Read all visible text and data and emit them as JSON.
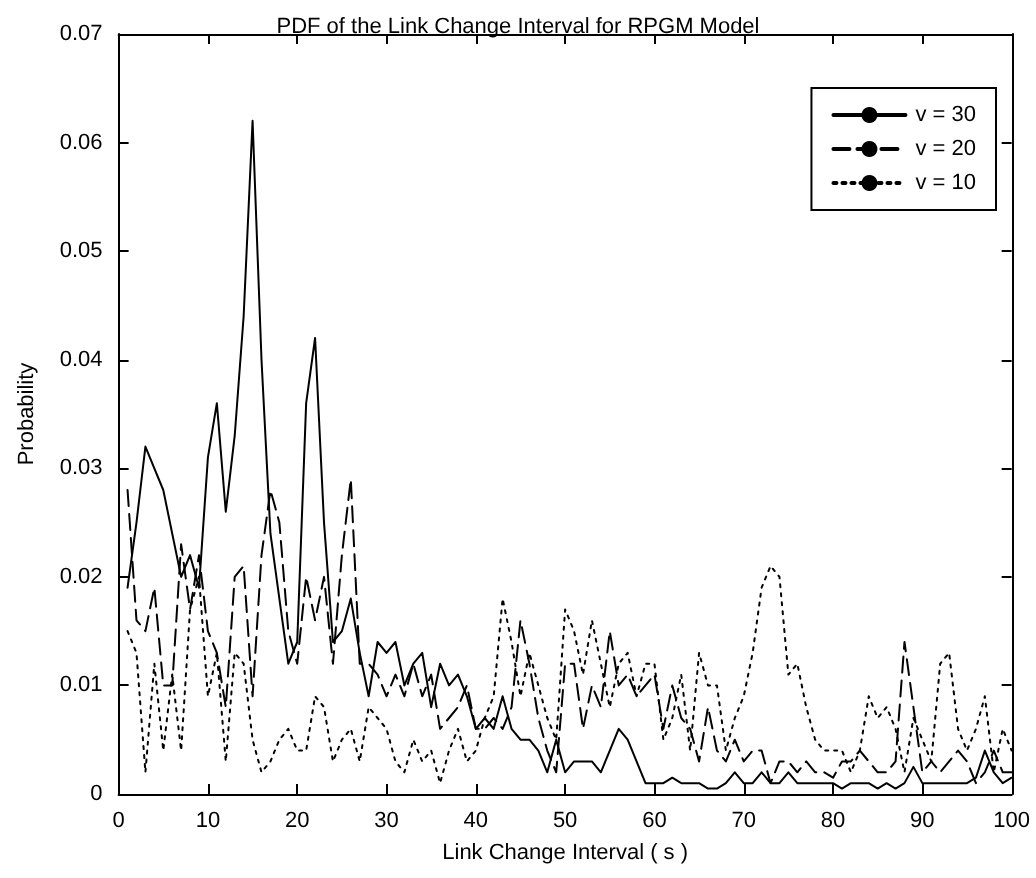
{
  "chart_data": {
    "type": "line",
    "title": "PDF of the Link Change Interval for RPGM Model",
    "xlabel": "Link Change Interval ( s )",
    "ylabel": "Probability",
    "x": [
      1,
      2,
      3,
      4,
      5,
      6,
      7,
      8,
      9,
      10,
      11,
      12,
      13,
      14,
      15,
      16,
      17,
      18,
      19,
      20,
      21,
      22,
      23,
      24,
      25,
      26,
      27,
      28,
      29,
      30,
      31,
      32,
      33,
      34,
      35,
      36,
      37,
      38,
      39,
      40,
      41,
      42,
      43,
      44,
      45,
      46,
      47,
      48,
      49,
      50,
      51,
      52,
      53,
      54,
      55,
      56,
      57,
      58,
      59,
      60,
      61,
      62,
      63,
      64,
      65,
      66,
      67,
      68,
      69,
      70,
      71,
      72,
      73,
      74,
      75,
      76,
      77,
      78,
      79,
      80,
      81,
      82,
      83,
      84,
      85,
      86,
      87,
      88,
      89,
      90,
      91,
      92,
      93,
      94,
      95,
      96,
      97,
      98,
      99,
      100
    ],
    "series": [
      {
        "name": "v = 30",
        "color": "#000000",
        "line_style": "solid",
        "values": [
          0.019,
          0.025,
          0.032,
          0.03,
          0.028,
          0.024,
          0.02,
          0.022,
          0.019,
          0.031,
          0.036,
          0.026,
          0.033,
          0.044,
          0.062,
          0.04,
          0.024,
          0.018,
          0.012,
          0.014,
          0.036,
          0.042,
          0.025,
          0.014,
          0.015,
          0.018,
          0.013,
          0.009,
          0.014,
          0.013,
          0.014,
          0.01,
          0.012,
          0.013,
          0.008,
          0.012,
          0.01,
          0.011,
          0.009,
          0.006,
          0.007,
          0.006,
          0.009,
          0.006,
          0.005,
          0.005,
          0.004,
          0.002,
          0.005,
          0.002,
          0.003,
          0.003,
          0.003,
          0.002,
          0.004,
          0.006,
          0.005,
          0.003,
          0.001,
          0.001,
          0.001,
          0.0015,
          0.001,
          0.001,
          0.001,
          0.0005,
          0.0005,
          0.001,
          0.002,
          0.001,
          0.001,
          0.002,
          0.001,
          0.001,
          0.002,
          0.001,
          0.001,
          0.001,
          0.001,
          0.001,
          0.0005,
          0.001,
          0.001,
          0.001,
          0.0005,
          0.001,
          0.0005,
          0.001,
          0.0025,
          0.001,
          0.001,
          0.001,
          0.001,
          0.001,
          0.001,
          0.0015,
          0.004,
          0.002,
          0.001,
          0.0015
        ]
      },
      {
        "name": "v = 20",
        "color": "#000000",
        "line_style": "dashed",
        "values": [
          0.028,
          0.016,
          0.015,
          0.019,
          0.01,
          0.01,
          0.023,
          0.017,
          0.022,
          0.015,
          0.013,
          0.008,
          0.02,
          0.021,
          0.009,
          0.022,
          0.028,
          0.025,
          0.015,
          0.012,
          0.02,
          0.016,
          0.02,
          0.012,
          0.022,
          0.029,
          0.012,
          0.012,
          0.011,
          0.009,
          0.011,
          0.009,
          0.012,
          0.009,
          0.011,
          0.006,
          0.007,
          0.008,
          0.01,
          0.006,
          0.006,
          0.007,
          0.006,
          0.008,
          0.016,
          0.012,
          0.007,
          0.004,
          0.002,
          0.012,
          0.012,
          0.006,
          0.01,
          0.008,
          0.015,
          0.01,
          0.011,
          0.009,
          0.01,
          0.011,
          0.006,
          0.01,
          0.007,
          0.006,
          0.003,
          0.008,
          0.004,
          0.003,
          0.005,
          0.003,
          0.004,
          0.004,
          0.001,
          0.003,
          0.003,
          0.002,
          0.003,
          0.002,
          0.002,
          0.0015,
          0.003,
          0.003,
          0.004,
          0.003,
          0.002,
          0.002,
          0.003,
          0.014,
          0.008,
          0.002,
          0.003,
          0.002,
          0.003,
          0.004,
          0.003,
          0.001,
          0.002,
          0.004,
          0.002,
          0.002
        ]
      },
      {
        "name": "v = 10",
        "color": "#000000",
        "line_style": "dotted",
        "values": [
          0.015,
          0.013,
          0.002,
          0.012,
          0.004,
          0.011,
          0.004,
          0.017,
          0.02,
          0.009,
          0.013,
          0.003,
          0.013,
          0.012,
          0.005,
          0.002,
          0.003,
          0.005,
          0.006,
          0.004,
          0.004,
          0.009,
          0.008,
          0.003,
          0.005,
          0.006,
          0.003,
          0.008,
          0.007,
          0.006,
          0.003,
          0.002,
          0.005,
          0.003,
          0.004,
          0.001,
          0.004,
          0.006,
          0.003,
          0.004,
          0.007,
          0.009,
          0.018,
          0.014,
          0.009,
          0.013,
          0.01,
          0.007,
          0.005,
          0.017,
          0.015,
          0.011,
          0.016,
          0.012,
          0.008,
          0.012,
          0.013,
          0.009,
          0.012,
          0.012,
          0.005,
          0.007,
          0.011,
          0.004,
          0.013,
          0.01,
          0.01,
          0.004,
          0.007,
          0.009,
          0.013,
          0.019,
          0.021,
          0.02,
          0.011,
          0.012,
          0.008,
          0.005,
          0.004,
          0.004,
          0.004,
          0.002,
          0.004,
          0.009,
          0.007,
          0.008,
          0.006,
          0.002,
          0.007,
          0.005,
          0.003,
          0.012,
          0.013,
          0.006,
          0.004,
          0.006,
          0.009,
          0.002,
          0.006,
          0.004
        ]
      }
    ],
    "xlim": [
      0,
      100
    ],
    "xticks": [
      0,
      10,
      20,
      30,
      40,
      50,
      60,
      70,
      80,
      90,
      100
    ],
    "ylim": [
      0,
      0.07
    ],
    "yticks": [
      0,
      0.01,
      0.02,
      0.03,
      0.04,
      0.05,
      0.06,
      0.07
    ],
    "legend": "top right",
    "marker": "none",
    "grid": false
  }
}
